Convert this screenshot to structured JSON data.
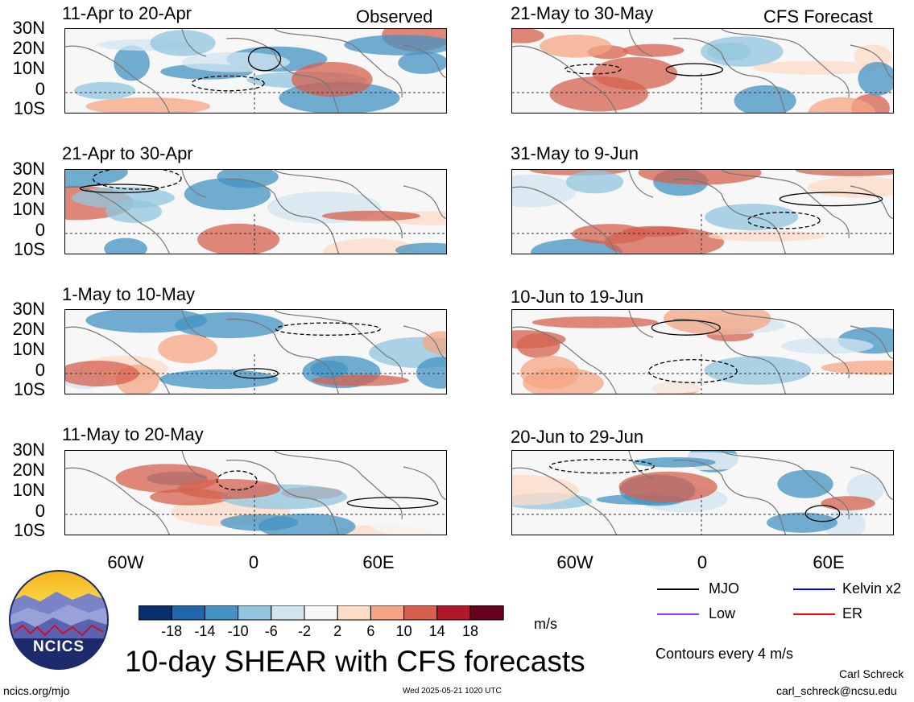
{
  "panels": [
    {
      "id": "p1",
      "title": "11-Apr to 20-Apr",
      "tag": "Observed"
    },
    {
      "id": "p2",
      "title": "21-Apr to 30-Apr",
      "tag": ""
    },
    {
      "id": "p3",
      "title": "1-May to 10-May",
      "tag": ""
    },
    {
      "id": "p4",
      "title": "11-May to 20-May",
      "tag": ""
    },
    {
      "id": "p5",
      "title": "21-May to 30-May",
      "tag": "CFS Forecast"
    },
    {
      "id": "p6",
      "title": "31-May to 9-Jun",
      "tag": ""
    },
    {
      "id": "p7",
      "title": "10-Jun to 19-Jun",
      "tag": ""
    },
    {
      "id": "p8",
      "title": "20-Jun to 29-Jun",
      "tag": ""
    }
  ],
  "lat_labels": [
    "30N",
    "20N",
    "10N",
    "0",
    "10S"
  ],
  "lon_labels": [
    "60W",
    "0",
    "60E"
  ],
  "colorbar": {
    "labels": [
      "-18",
      "-14",
      "-10",
      "-6",
      "-2",
      "2",
      "6",
      "10",
      "14",
      "18"
    ],
    "colors": [
      "#08306b",
      "#2166ac",
      "#4393c3",
      "#92c5de",
      "#d1e5f0",
      "#f7f7f7",
      "#fddbc7",
      "#f4a582",
      "#d6604d",
      "#b2182b",
      "#67001f"
    ],
    "units": "m/s"
  },
  "legend": {
    "items": [
      {
        "label": "MJO",
        "color": "#000000"
      },
      {
        "label": "Kelvin x2",
        "color": "#0000ff"
      },
      {
        "label": "Low",
        "color": "#9933ff"
      },
      {
        "label": "ER",
        "color": "#ff0000"
      }
    ],
    "contours": "Contours every 4 m/s"
  },
  "title": "10-day SHEAR with CFS forecasts",
  "logo_text": "NCICS",
  "footer": {
    "url": "ncics.org/mjo",
    "timestamp": "Wed 2025-05-21 1020 UTC",
    "author": "Carl Schreck",
    "email": "carl_schreck@ncsu.edu"
  }
}
